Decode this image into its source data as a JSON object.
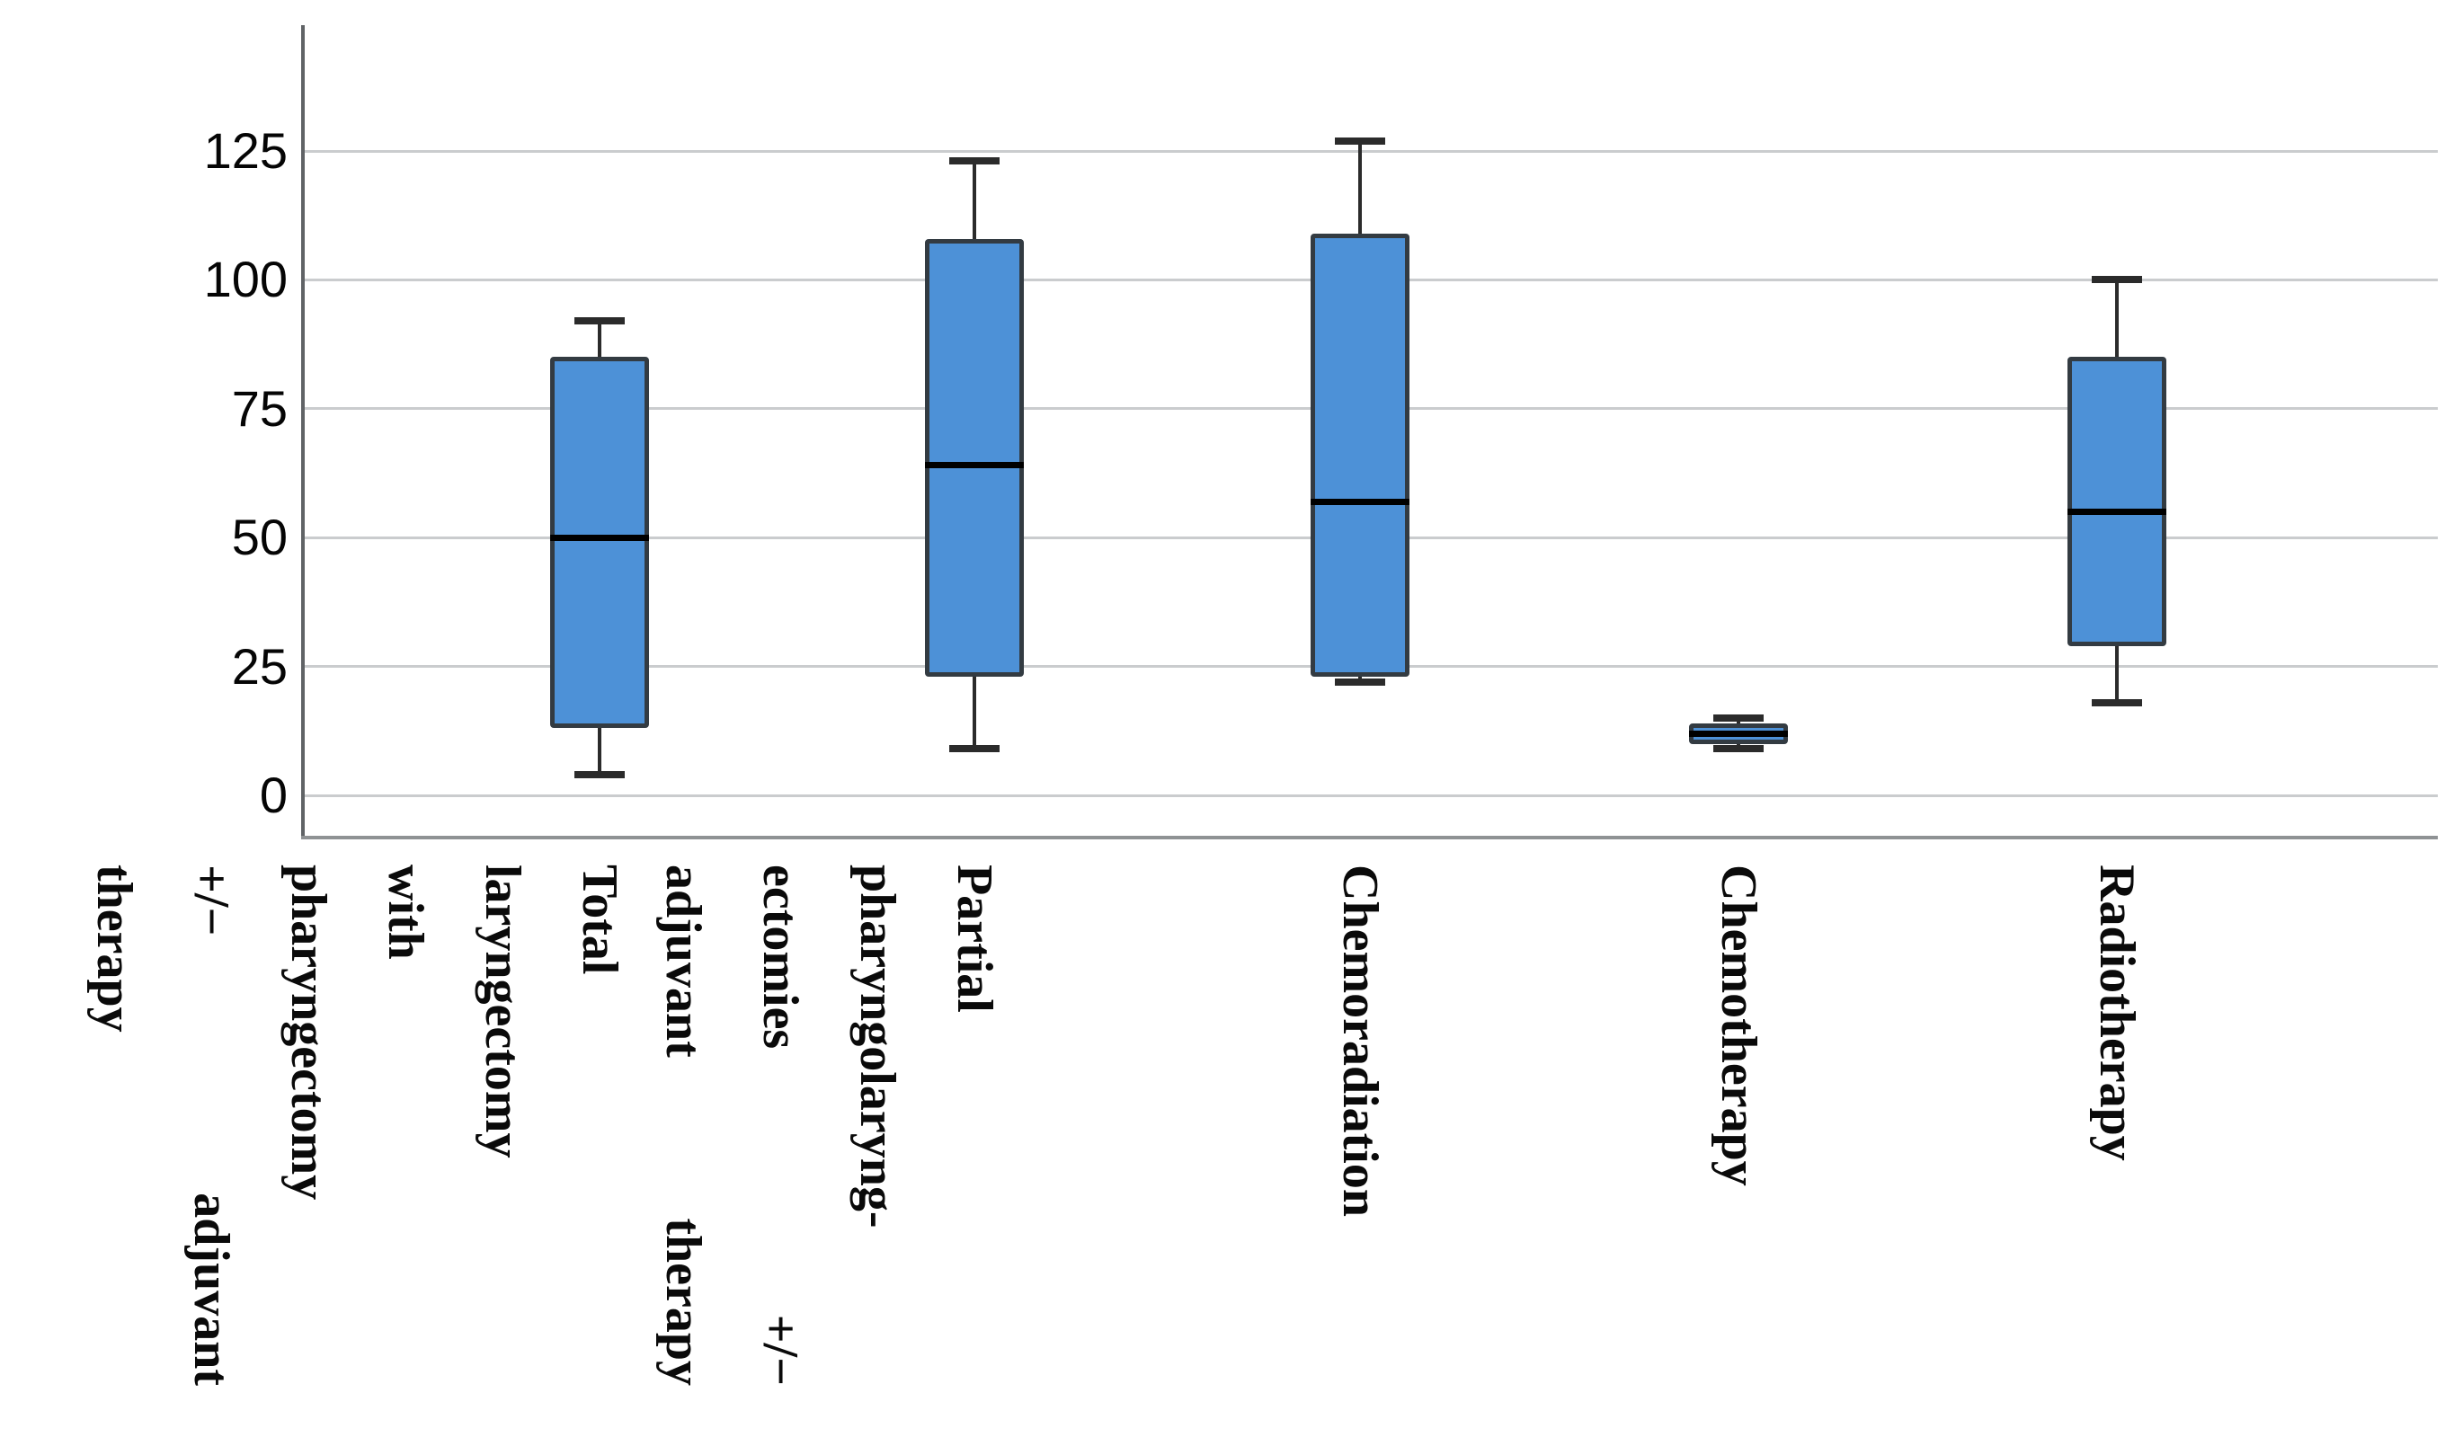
{
  "chart_data": {
    "type": "boxplot",
    "title": "",
    "xlabel": "",
    "ylabel": "",
    "yticks": [
      0,
      25,
      50,
      75,
      100,
      125
    ],
    "ylim": [
      0,
      149
    ],
    "grid": "horizontal",
    "legend": "none",
    "categories": [
      {
        "label": "Total laryngectomy with pharyngectomy +/− adjuvant therapy",
        "label_lines": [
          "Total",
          "laryngectomy",
          "with",
          "pharyngectomy",
          "+/− adjuvant",
          "therapy"
        ],
        "stats": {
          "min": 4,
          "q1": 13,
          "median": 50,
          "q3": 85,
          "max": 92
        }
      },
      {
        "label": "Partial pharyngolaryng-ectomies +/− adjuvant therapy",
        "label_lines": [
          "Partial",
          "pharyngolaryng-",
          "ectomies +/−",
          "adjuvant therapy"
        ],
        "stats": {
          "min": 9,
          "q1": 23,
          "median": 64,
          "q3": 108,
          "max": 123
        }
      },
      {
        "label": "Chemoradiation",
        "label_lines": [
          "Chemoradiation"
        ],
        "stats": {
          "min": 22,
          "q1": 23,
          "median": 57,
          "q3": 109,
          "max": 127
        }
      },
      {
        "label": "Chemotherapy",
        "label_lines": [
          "Chemotherapy"
        ],
        "stats": {
          "min": 9,
          "q1": 10,
          "median": 12,
          "q3": 14,
          "max": 15
        }
      },
      {
        "label": "Radiotherapy",
        "label_lines": [
          "Radiotherapy"
        ],
        "stats": {
          "min": 18,
          "q1": 29,
          "median": 55,
          "q3": 85,
          "max": 100
        }
      }
    ],
    "colors": {
      "box_fill": "#4d91d7",
      "box_border": "#333b42",
      "median": "#000000",
      "whisker": "#2b2b2b",
      "gridline": "#caccce",
      "y_axis": "#606366",
      "frame": "#8f9294",
      "tick_text": "#050505",
      "label_text": "#0a0a0a"
    }
  }
}
